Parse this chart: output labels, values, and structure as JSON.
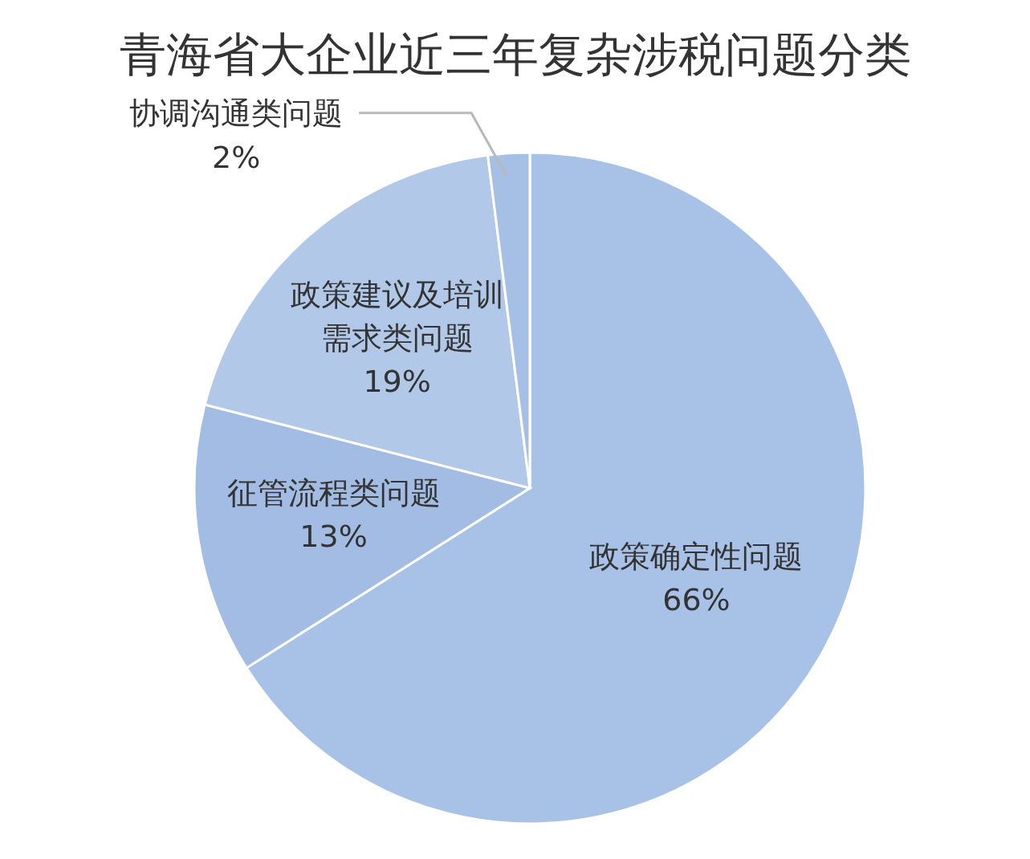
{
  "chart_data": {
    "type": "pie",
    "title": "青海省大企业近三年复杂涉税问题分类",
    "categories": [
      "政策确定性问题",
      "征管流程类问题",
      "政策建议及培训需求类问题",
      "协调沟通类问题"
    ],
    "values": [
      66,
      13,
      19,
      2
    ],
    "value_labels": [
      "66%",
      "13%",
      "19%",
      "2%"
    ],
    "colors": [
      "#a8c1e6",
      "#a2bce3",
      "#b2c8e8",
      "#a6bfe4"
    ],
    "legend": false
  }
}
